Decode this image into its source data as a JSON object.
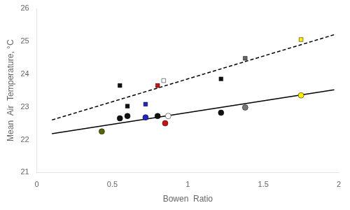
{
  "chart_data": {
    "type": "scatter",
    "xlabel": "Bowen  Ratio",
    "ylabel": "Mean  Air  Temperature, °C",
    "xlim": [
      0,
      2
    ],
    "ylim": [
      21,
      26
    ],
    "xticks": [
      0,
      0.5,
      1,
      1.5,
      2
    ],
    "yticks": [
      21,
      22,
      23,
      24,
      25,
      26
    ],
    "grid": false,
    "series": [
      {
        "type": "line",
        "line_style": "solid",
        "color": "#000000",
        "x": [
          0.1,
          1.97
        ],
        "values": [
          22.18,
          23.52
        ]
      },
      {
        "type": "line",
        "line_style": "dashed",
        "color": "#000000",
        "x": [
          0.1,
          1.97
        ],
        "values": [
          22.6,
          25.2
        ]
      },
      {
        "type": "scatter",
        "marker": "square",
        "colors": [
          "#111111",
          "#111111",
          "#2222cc",
          "#cc1111",
          "#ffffff",
          "#111111",
          "#666666",
          "#ffee00"
        ],
        "x": [
          0.55,
          0.6,
          0.72,
          0.8,
          0.84,
          1.22,
          1.38,
          1.75
        ],
        "values": [
          23.65,
          23.02,
          23.08,
          23.65,
          23.8,
          23.85,
          24.48,
          25.05
        ]
      },
      {
        "type": "scatter",
        "marker": "circle",
        "colors": [
          "#556600",
          "#111111",
          "#111111",
          "#2222cc",
          "#111111",
          "#cc1111",
          "#ffffff",
          "#111111",
          "#777777",
          "#ffee00"
        ],
        "x": [
          0.43,
          0.55,
          0.6,
          0.72,
          0.8,
          0.85,
          0.87,
          1.22,
          1.38,
          1.75
        ],
        "values": [
          22.25,
          22.65,
          22.72,
          22.68,
          22.72,
          22.5,
          22.72,
          22.82,
          22.98,
          23.35
        ]
      }
    ]
  }
}
